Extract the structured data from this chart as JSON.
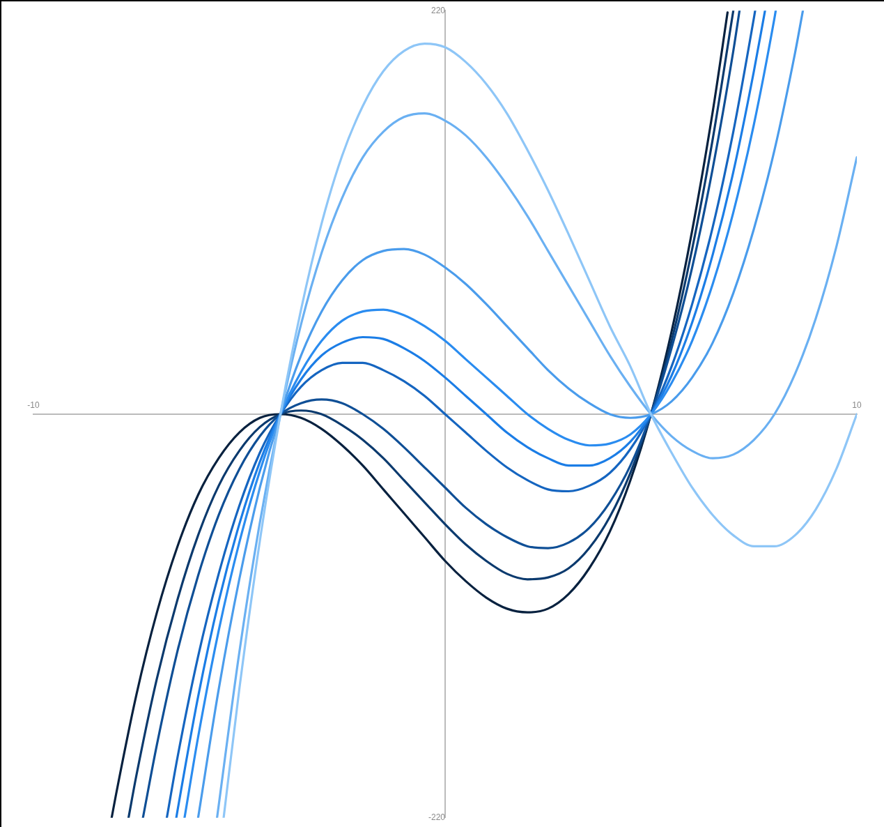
{
  "chart_data": {
    "type": "line",
    "xlim": [
      -10,
      10
    ],
    "ylim": [
      -220,
      220
    ],
    "xticks": [
      -10,
      10
    ],
    "yticks": [
      220,
      -220
    ],
    "grid": false,
    "legend": false,
    "marker": "none",
    "line_style": "solid",
    "series": [
      {
        "color": "#8ec6f7",
        "x": [
          -5.38,
          -5,
          -4.5,
          -4,
          -3.5,
          -3,
          -2.5,
          -2,
          -1.5,
          -1,
          -0.5,
          0,
          0.5,
          1,
          1.5,
          2,
          2.5,
          3,
          3.5,
          4,
          4.5,
          5,
          5.5,
          6,
          6.5,
          7,
          7.5,
          8,
          8.5,
          9,
          9.5,
          10
        ],
        "values": [
          -220,
          -150,
          -69,
          0,
          57,
          104,
          141,
          168,
          187,
          198,
          202,
          200,
          192,
          180,
          164,
          144,
          122,
          98,
          73,
          48,
          26,
          0,
          -21,
          -40,
          -55,
          -66,
          -72,
          -72,
          -66,
          -52,
          -30,
          0
        ]
      },
      {
        "color": "#6ab0f2",
        "x": [
          -5.54,
          -5,
          -4.5,
          -4,
          -3.5,
          -3,
          -2.5,
          -2,
          -1.5,
          -1,
          -0.5,
          0,
          0.5,
          1,
          1.5,
          2,
          2.5,
          3,
          3.5,
          4,
          4.5,
          5,
          5.5,
          6,
          6.5,
          7,
          7.5,
          8,
          8.5,
          9,
          9.5,
          10
        ],
        "values": [
          -220,
          -130,
          -59,
          0,
          49,
          88,
          118,
          140,
          154,
          162,
          164,
          160,
          152,
          140,
          125,
          108,
          89,
          70,
          51,
          32,
          15,
          0,
          -12,
          -20,
          -24,
          -22,
          -14,
          0,
          22,
          52,
          91,
          140
        ]
      },
      {
        "color": "#4a9cec",
        "x": [
          -6,
          -5.5,
          -5,
          -4.5,
          -4,
          -3.5,
          -3,
          -2.5,
          -2,
          -1.5,
          -1,
          -0.5,
          0,
          0.5,
          1,
          1.5,
          2,
          2.5,
          3,
          3.5,
          4,
          4.5,
          5,
          5.5,
          6,
          6.5,
          7,
          7.5,
          8,
          8.5,
          8.69
        ],
        "values": [
          -220,
          -150,
          -90,
          -40,
          0,
          32,
          56,
          73,
          84,
          89,
          90,
          87,
          80,
          71,
          60,
          48,
          36,
          24,
          14,
          6,
          0,
          -2,
          0,
          7,
          20,
          39,
          66,
          101,
          144,
          197,
          220
        ]
      },
      {
        "color": "#2a8cf0",
        "x": [
          -6.33,
          -6,
          -5.5,
          -5,
          -4.5,
          -4,
          -3.5,
          -3,
          -2.5,
          -2,
          -1.5,
          -1,
          -0.5,
          0,
          0.5,
          1,
          1.5,
          2,
          2.5,
          3,
          3.5,
          4,
          4.5,
          5,
          5.5,
          6,
          6.5,
          7,
          7.5,
          8,
          8.03
        ],
        "values": [
          -220,
          -176,
          -118,
          -70,
          -31,
          0,
          23,
          40,
          51,
          56,
          57,
          54,
          48,
          40,
          30,
          20,
          10,
          0,
          -8,
          -14,
          -17,
          -16,
          -11,
          0,
          17,
          40,
          71,
          110,
          158,
          216,
          220
        ]
      },
      {
        "color": "#1b7de6",
        "x": [
          -6.53,
          -6.5,
          -6,
          -5.5,
          -5,
          -4.5,
          -4,
          -3.5,
          -3,
          -2.5,
          -2,
          -1.5,
          -1,
          -0.5,
          0,
          0.5,
          1,
          1.5,
          2,
          2.5,
          3,
          3.5,
          4,
          4.5,
          5,
          5.5,
          6,
          6.5,
          7,
          7.5,
          7.77
        ],
        "values": [
          -220,
          -216,
          -154,
          -102,
          -60,
          -26,
          0,
          19,
          32,
          39,
          42,
          41,
          36,
          29,
          20,
          10,
          0,
          -10,
          -18,
          -24,
          -28,
          -28,
          -24,
          -15,
          0,
          21,
          50,
          87,
          132,
          187,
          220
        ]
      },
      {
        "color": "#1565c0",
        "x": [
          -6.76,
          -6.5,
          -6,
          -5.5,
          -5,
          -4.5,
          -4,
          -3.5,
          -3,
          -2.5,
          -2,
          -1.5,
          -1,
          -0.5,
          0,
          0.5,
          1,
          1.5,
          2,
          2.5,
          3,
          3.5,
          4,
          4.5,
          5,
          5.5,
          6,
          6.5,
          7,
          7.5,
          7.53
        ],
        "values": [
          -220,
          -187,
          -132,
          -87,
          -50,
          -21,
          0,
          15,
          24,
          28,
          28,
          24,
          18,
          10,
          0,
          -10,
          -20,
          -29,
          -36,
          -41,
          -42,
          -39,
          -32,
          -19,
          0,
          26,
          60,
          102,
          154,
          216,
          220
        ]
      },
      {
        "color": "#0f4f96",
        "x": [
          -7.34,
          -7,
          -6.5,
          -6,
          -5.5,
          -5,
          -4.5,
          -4,
          -3.5,
          -3,
          -2.5,
          -2,
          -1.5,
          -1,
          -0.5,
          0,
          0.5,
          1,
          1.5,
          2,
          2.5,
          3,
          3.5,
          4,
          4.5,
          5,
          5.5,
          6,
          6.5,
          7,
          7.15
        ],
        "values": [
          -220,
          -180,
          -129,
          -88,
          -55,
          -30,
          -12,
          0,
          6,
          8,
          6,
          0,
          -8,
          -18,
          -29,
          -40,
          -51,
          -60,
          -67,
          -72,
          -73,
          -70,
          -62,
          -48,
          -28,
          0,
          36,
          80,
          134,
          198,
          220
        ]
      },
      {
        "color": "#0b3a6e",
        "x": [
          -7.69,
          -7.5,
          -7,
          -6.5,
          -6,
          -5.5,
          -5,
          -4.5,
          -4,
          -3.5,
          -3,
          -2.5,
          -2,
          -1.5,
          -1,
          -0.5,
          0,
          0.5,
          1,
          1.5,
          2,
          2.5,
          3,
          3.5,
          4,
          4.5,
          5,
          5.5,
          6,
          6.5,
          7
        ],
        "values": [
          -220,
          -197,
          -144,
          -101,
          -66,
          -39,
          -20,
          -7,
          0,
          2,
          0,
          -6,
          -14,
          -24,
          -36,
          -48,
          -60,
          -71,
          -80,
          -87,
          -90,
          -89,
          -84,
          -73,
          -56,
          -32,
          0,
          40,
          90,
          150,
          220
        ]
      },
      {
        "color": "#07213f",
        "x": [
          -8.1,
          -8,
          -7.5,
          -7,
          -6.5,
          -6,
          -5.5,
          -5,
          -4.5,
          -4,
          -3.5,
          -3,
          -2.5,
          -2,
          -1.5,
          -1,
          -0.5,
          0,
          0.5,
          1,
          1.5,
          2,
          2.5,
          3,
          3.5,
          4,
          4.5,
          5,
          5.5,
          6,
          6.5,
          6.86
        ],
        "values": [
          -220,
          -208,
          -153,
          -108,
          -72,
          -44,
          -24,
          -10,
          -2,
          0,
          -2,
          -8,
          -17,
          -28,
          -41,
          -54,
          -67,
          -80,
          -91,
          -100,
          -106,
          -108,
          -106,
          -98,
          -84,
          -64,
          -36,
          0,
          45,
          100,
          165,
          219
        ]
      }
    ]
  }
}
